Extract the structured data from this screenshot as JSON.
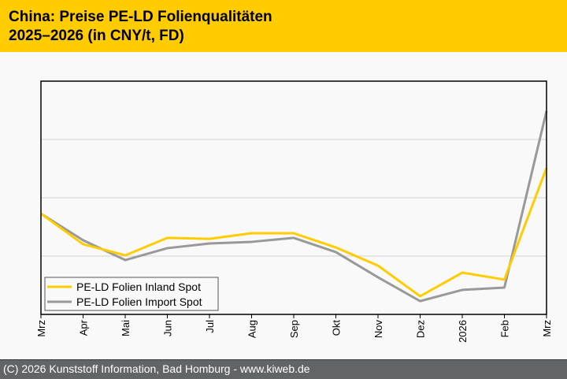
{
  "header": {
    "title_line1": "China: Preise PE-LD Folienqualitäten",
    "title_line2": "2025–2026 (in CNY/t, FD)"
  },
  "footer": {
    "text": "(C) 2026 Kunststoff Information, Bad Homburg - www.kiweb.de"
  },
  "colors": {
    "header_bg": "#ffcc00",
    "footer_bg": "#636468",
    "inland": "#ffcc00",
    "import": "#999999"
  },
  "chart_data": {
    "type": "line",
    "title": "China: Preise PE-LD Folienqualitäten 2025–2026 (in CNY/t, FD)",
    "xlabel": "",
    "ylabel": "",
    "y_units_note": "relative scale (no y tick labels shown); 0 = axis bottom, 100 = axis top",
    "ylim": [
      0,
      100
    ],
    "grid": true,
    "grid_lines": [
      25,
      50,
      75
    ],
    "legend_position": "bottom-left",
    "categories": [
      "Mrz",
      "Apr",
      "Mai",
      "Jun",
      "Jul",
      "Aug",
      "Sep",
      "Okt",
      "Nov",
      "Dez",
      "2026",
      "Feb",
      "Mrz"
    ],
    "series": [
      {
        "name": "PE-LD Folien Inland Spot",
        "color": "#ffcc00",
        "values": [
          43.2,
          30.1,
          25.3,
          32.8,
          32.4,
          34.8,
          34.8,
          28.7,
          20.9,
          7.8,
          17.9,
          14.9,
          62.8
        ]
      },
      {
        "name": "PE-LD Folien Import Spot",
        "color": "#999999",
        "values": [
          43.2,
          31.8,
          23.3,
          28.4,
          30.4,
          31.1,
          32.8,
          26.7,
          15.9,
          5.7,
          10.5,
          11.5,
          87.2
        ]
      }
    ]
  }
}
